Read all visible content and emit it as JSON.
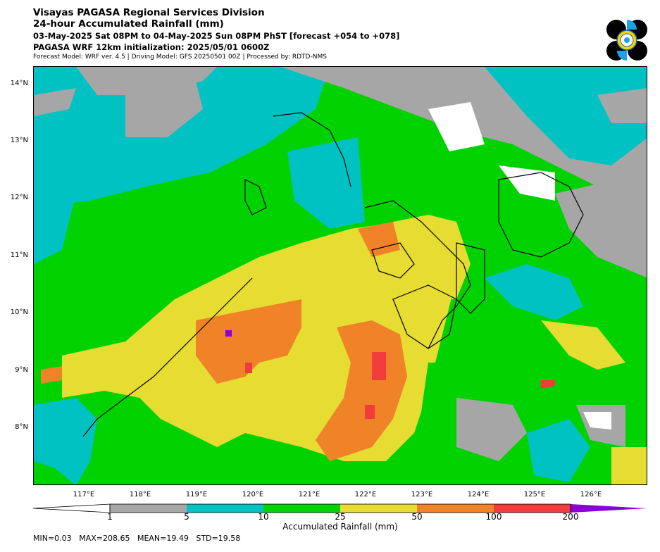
{
  "header": {
    "title_line1": "Visayas PAGASA Regional Services Division",
    "title_line2": "24-hour Accumulated Rainfall (mm)",
    "period": "03-May-2025 Sat 08PM to 04-May-2025 Sun 08PM PhST [forecast +054 to +078]",
    "initialization": "PAGASA WRF 12km initialization: 2025/05/01 0600Z",
    "model_info": "Forecast Model: WRF ver. 4.5 | Driving Model: GFS 20250501 00Z | Processed by: RDTD-NMS"
  },
  "logo": {
    "icon": "pagasa-seal-icon"
  },
  "map": {
    "lat_labels": [
      "14°N",
      "13°N",
      "12°N",
      "11°N",
      "10°N",
      "9°N",
      "8°N"
    ],
    "lon_labels": [
      "117°E",
      "118°E",
      "119°E",
      "120°E",
      "121°E",
      "122°E",
      "123°E",
      "124°E",
      "125°E",
      "126°E"
    ]
  },
  "colorbar": {
    "ticks": [
      "1",
      "5",
      "10",
      "25",
      "50",
      "100",
      "200"
    ],
    "label": "Accumulated Rainfall (mm)",
    "colors": {
      "under": "#ffffff",
      "c1": "#a6a6a6",
      "c2": "#00c2c2",
      "c3": "#00d200",
      "c4": "#e6dc32",
      "c5": "#f08228",
      "c6": "#f03c3c",
      "over": "#8c00d2"
    }
  },
  "stats": {
    "min": "MIN=0.03",
    "max": "MAX=208.65",
    "mean": "MEAN=19.49",
    "std": "STD=19.58"
  }
}
